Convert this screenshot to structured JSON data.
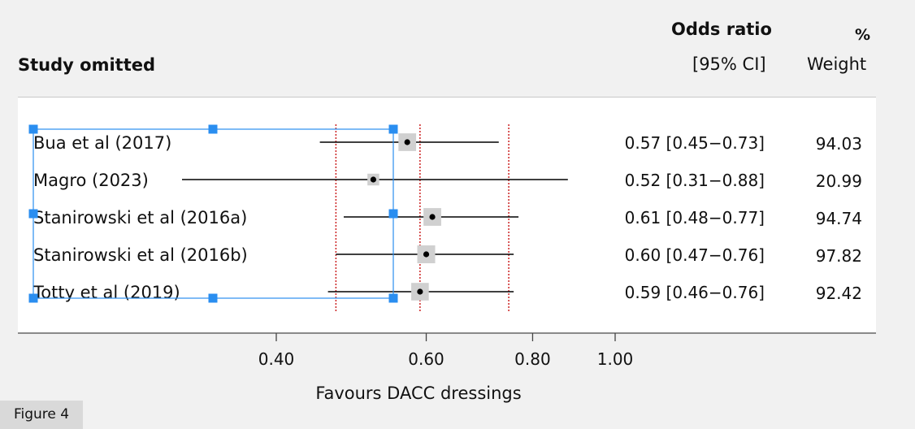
{
  "header": {
    "study_col": "Study omitted",
    "or_title": "Odds ratio",
    "or_ci": "[95% CI]",
    "weight_pct": "%",
    "weight_label": "Weight"
  },
  "chart_data": {
    "type": "forest",
    "xscale": "log",
    "xlim": [
      0.3,
      1.2
    ],
    "xticks": [
      0.4,
      0.6,
      0.8,
      1.0
    ],
    "xtick_labels": [
      "0.40",
      "0.60",
      "0.80",
      "1.00"
    ],
    "xlabel": "Favours DACC dressings",
    "reference_lines": [
      0.47,
      0.59,
      0.75
    ],
    "studies": [
      {
        "name": "Bua et al (2017)",
        "or": 0.57,
        "lo": 0.45,
        "hi": 0.73,
        "ci_text": "0.57 [0.45−0.73]",
        "weight": "94.03"
      },
      {
        "name": "Magro (2023)",
        "or": 0.52,
        "lo": 0.31,
        "hi": 0.88,
        "ci_text": "0.52 [0.31−0.88]",
        "weight": "20.99"
      },
      {
        "name": "Stanirowski et al (2016a)",
        "or": 0.61,
        "lo": 0.48,
        "hi": 0.77,
        "ci_text": "0.61 [0.48−0.77]",
        "weight": "94.74"
      },
      {
        "name": "Stanirowski et al (2016b)",
        "or": 0.6,
        "lo": 0.47,
        "hi": 0.76,
        "ci_text": "0.60 [0.47−0.76]",
        "weight": "97.82"
      },
      {
        "name": "Totty et al (2019)",
        "or": 0.59,
        "lo": 0.46,
        "hi": 0.76,
        "ci_text": "0.59 [0.46−0.76]",
        "weight": "92.42"
      }
    ]
  },
  "figure_label": "Figure 4",
  "colors": {
    "ref_line": "#cc2222",
    "selection": "#2a8ef0",
    "box": "#d0d0d0"
  }
}
